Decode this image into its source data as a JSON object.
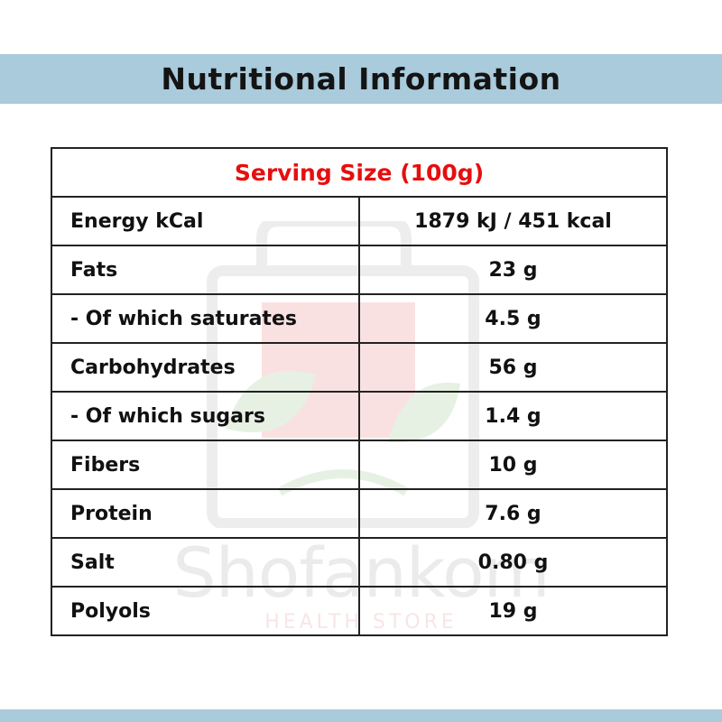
{
  "header": {
    "title": "Nutritional Information"
  },
  "table": {
    "serving_size": "Serving Size (100g)",
    "rows": [
      {
        "nutrient": "Energy kCal",
        "amount": "1879 kJ / 451 kcal"
      },
      {
        "nutrient": "Fats",
        "amount": "23 g"
      },
      {
        "nutrient": "- Of which saturates",
        "amount": "4.5 g"
      },
      {
        "nutrient": "Carbohydrates",
        "amount": "56 g"
      },
      {
        "nutrient": "- Of which sugars",
        "amount": "1.4 g"
      },
      {
        "nutrient": "Fibers",
        "amount": "10 g"
      },
      {
        "nutrient": "Protein",
        "amount": "7.6 g"
      },
      {
        "nutrient": "Salt",
        "amount": "0.80 g"
      },
      {
        "nutrient": "Polyols",
        "amount": "19 g"
      }
    ]
  },
  "watermark": {
    "brand": "Shofankom",
    "tagline": "HEALTH STORE"
  },
  "colors": {
    "band": "#a9cbdc",
    "serving_text": "#e60f0f",
    "border": "#222222"
  }
}
